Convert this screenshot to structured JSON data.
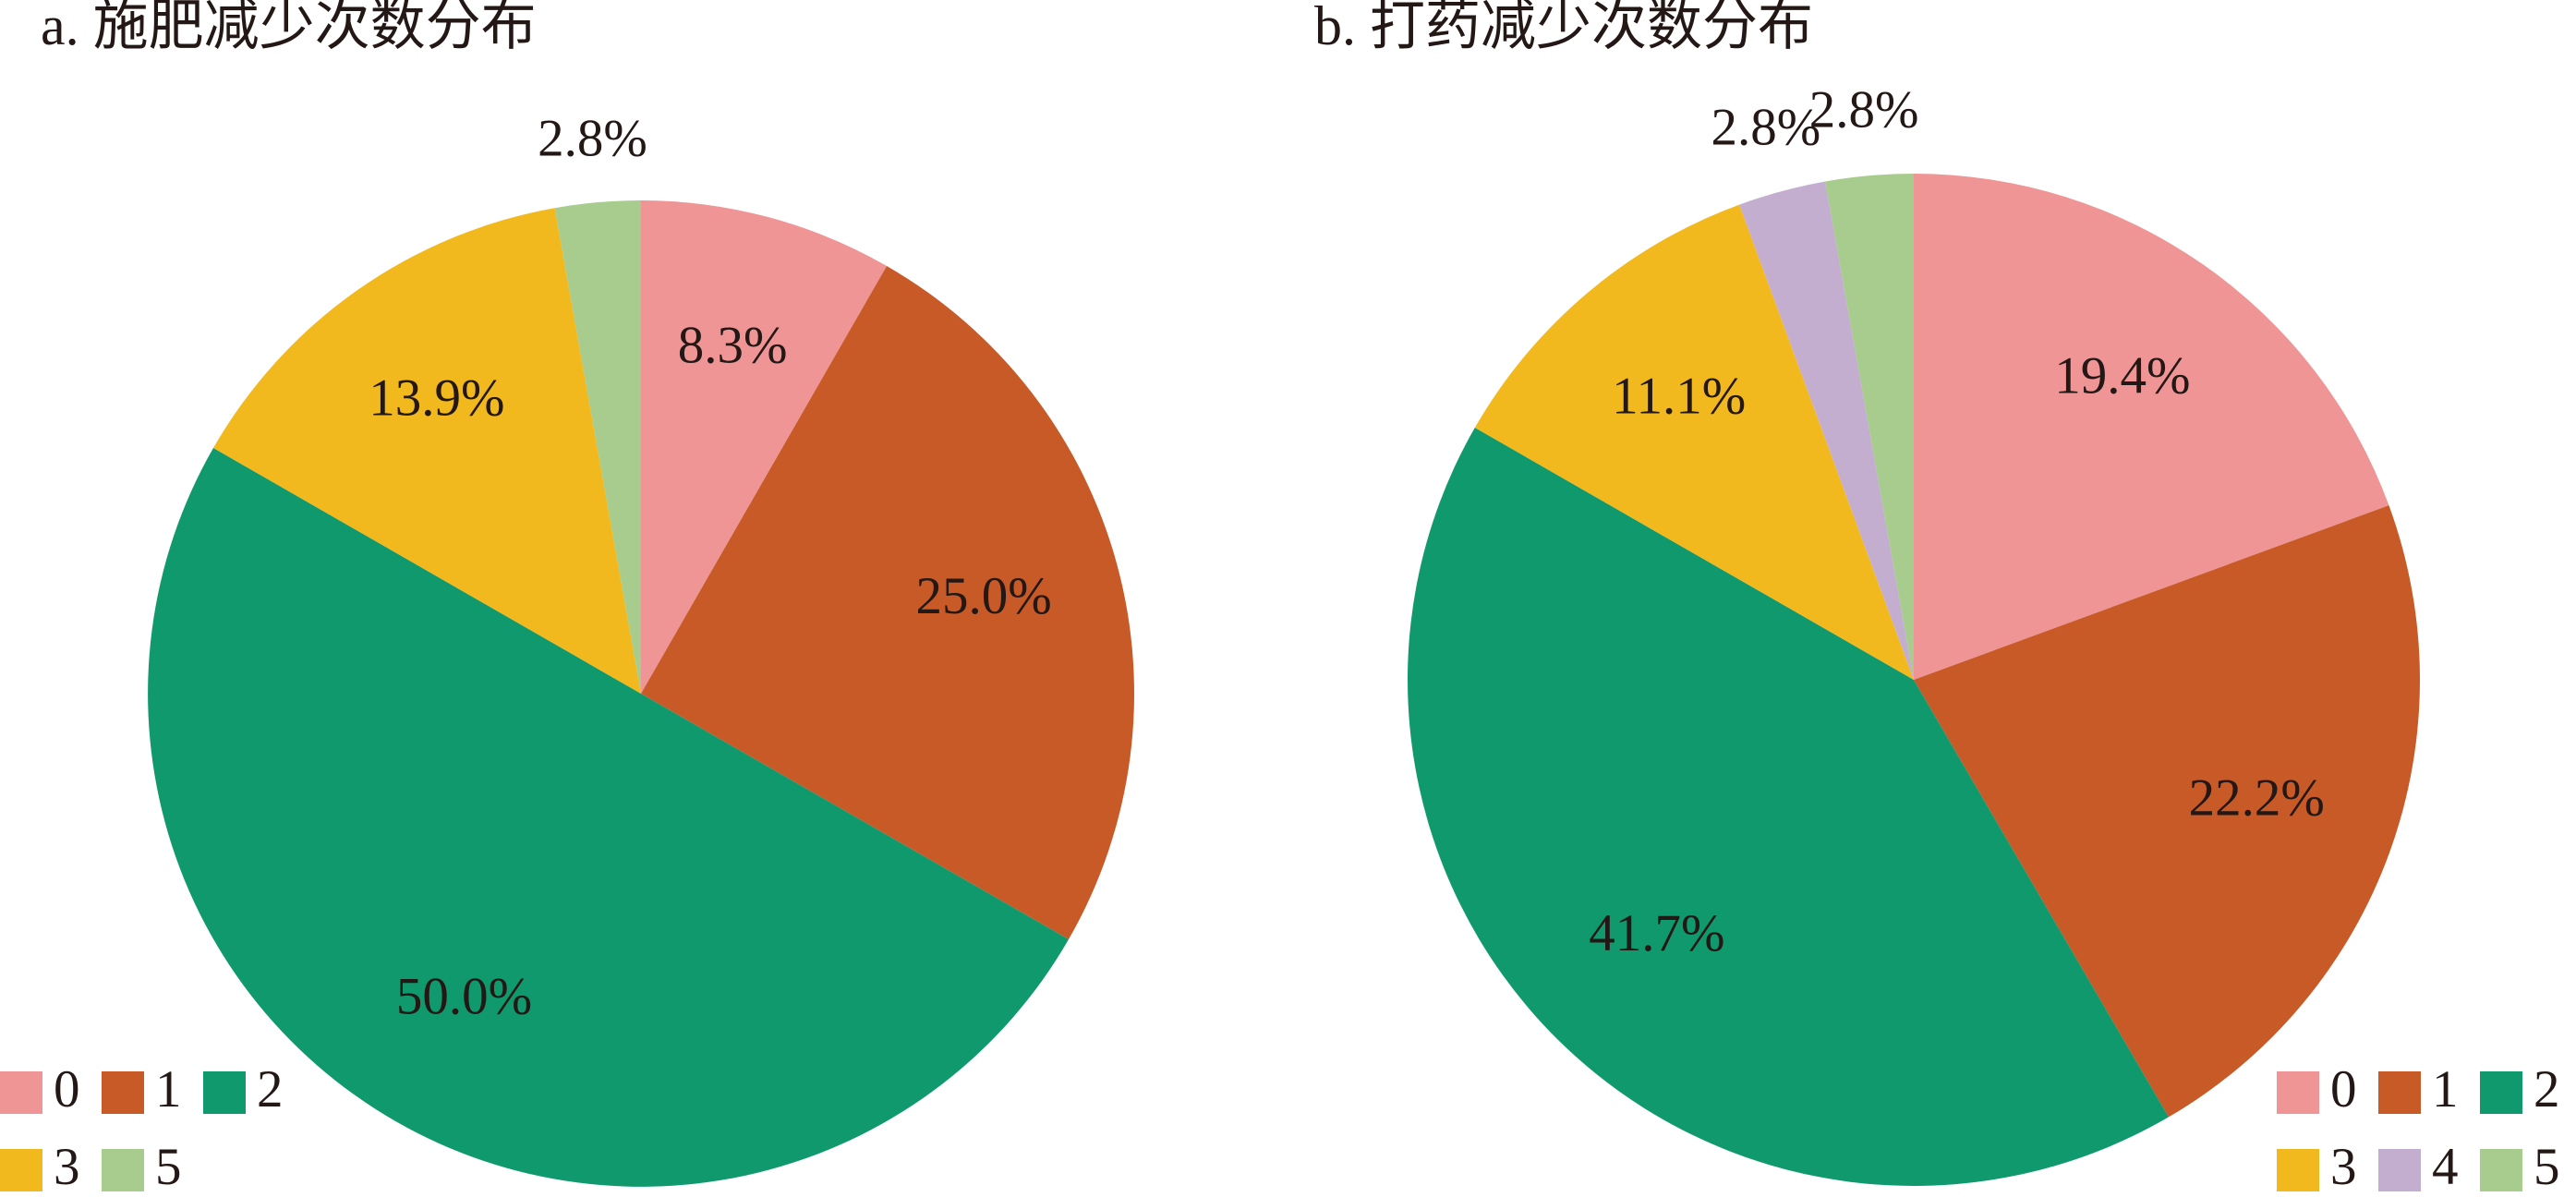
{
  "chart_data": [
    {
      "type": "pie",
      "title": "a. 施肥减少次数分布",
      "categories": [
        "0",
        "1",
        "2",
        "3",
        "5"
      ],
      "values": [
        8.3,
        25.0,
        50.0,
        13.9,
        2.8
      ],
      "value_labels": [
        "8.3%",
        "25.0%",
        "50.0%",
        "13.9%",
        "2.8%"
      ],
      "colors": [
        "#f09595",
        "#c85a28",
        "#11996e",
        "#f2b91e",
        "#a8cb8e"
      ],
      "legend": "lower left"
    },
    {
      "type": "pie",
      "title": "b. 打药减少次数分布",
      "categories": [
        "0",
        "1",
        "2",
        "3",
        "4",
        "5"
      ],
      "values": [
        19.4,
        22.2,
        41.7,
        11.1,
        2.8,
        2.8
      ],
      "value_labels": [
        "19.4%",
        "22.2%",
        "41.7%",
        "11.1%",
        "2.8%",
        "2.8%"
      ],
      "colors": [
        "#f09595",
        "#c85a28",
        "#11996e",
        "#f2b91e",
        "#c4aed0",
        "#a8cb8e"
      ],
      "legend": "lower right"
    }
  ]
}
